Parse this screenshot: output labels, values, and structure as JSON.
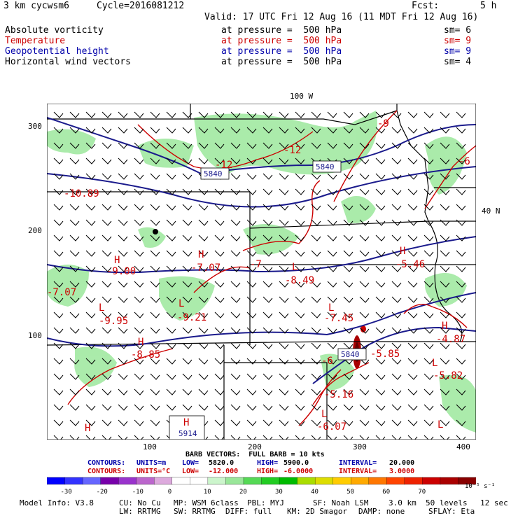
{
  "header": {
    "model": "3 km cycwsm6",
    "cycle": "Cycle=2016081212",
    "fcst_label": "Fcst:",
    "fcst_value": "5 h",
    "valid": "Valid: 17 UTC Fri 12 Aug 16 (11 MDT Fri 12 Aug 16)",
    "fields": [
      {
        "name": "Absolute vorticity",
        "at": "at pressure =  500 hPa",
        "sm": "sm= 6",
        "color": "#000000"
      },
      {
        "name": "Temperature",
        "at": "at pressure =  500 hPa",
        "sm": "sm= 9",
        "color": "#cc0000"
      },
      {
        "name": "Geopotential height",
        "at": "at pressure =  500 hPa",
        "sm": "sm= 9",
        "color": "#0000aa"
      },
      {
        "name": "Horizontal wind vectors",
        "at": "at pressure =  500 hPa",
        "sm": "sm= 4",
        "color": "#000000"
      }
    ]
  },
  "map": {
    "top_label": "100 W",
    "right_label": "40 N",
    "y_ticks": [
      "300",
      "200",
      "100"
    ],
    "x_ticks": [
      "100",
      "200",
      "300",
      "400"
    ],
    "height_labels": [
      "5840",
      "5840",
      "5840",
      "5914"
    ],
    "temp_labels": [
      "-12",
      "-12",
      "-9",
      "-6",
      "-10.89",
      "-9.00",
      "-7.07",
      "-7",
      "-8.49",
      "-5.46",
      "-7.07",
      "-9.95",
      "-9.21",
      "-7.45",
      "-4.87",
      "-8.85",
      "-5.85",
      "-5.82",
      "-6",
      "-5.16",
      "-6.07"
    ],
    "pressure_centers": [
      "H",
      "H",
      "H",
      "L",
      "L",
      "L",
      "H",
      "L",
      "H",
      "L",
      "L",
      "L",
      "H",
      "H"
    ],
    "colors": {
      "vorticity": "#9ce89c",
      "height": "#1a1a8c",
      "temp": "#cc0000",
      "border": "#000000",
      "wind": "#000000"
    }
  },
  "legend": {
    "barb_vectors": "BARB VECTORS:  FULL BARB = 10 kts",
    "contours_height": {
      "label": "CONTOURS:",
      "units": "UNITS=m",
      "low": "LOW=",
      "low_v": "5820.0",
      "high": "HIGH=",
      "high_v": "5900.0",
      "interval": "INTERVAL=",
      "interval_v": "20.000"
    },
    "contours_temp": {
      "label": "CONTOURS:",
      "units": "UNITS=°C",
      "low": "LOW=",
      "low_v": "-12.000",
      "high": "HIGH=",
      "high_v": "-6.0000",
      "interval": "INTERVAL=",
      "interval_v": "3.0000"
    },
    "colorbar_ticks": [
      "-30",
      "-20",
      "-10",
      "0",
      "10",
      "20",
      "30",
      "40",
      "50",
      "60",
      "70"
    ],
    "colorbar_unit": "10⁻⁵ s⁻¹",
    "colorbar_colors": [
      "#0000ff",
      "#3333ff",
      "#6666ff",
      "#7700aa",
      "#9933cc",
      "#bb66cc",
      "#ddaadd",
      "#ffffff",
      "#ffffff",
      "#ccf5cc",
      "#99e699",
      "#55d955",
      "#22cc22",
      "#00bb00",
      "#aadd00",
      "#dddd00",
      "#ffcc00",
      "#ffaa00",
      "#ff7700",
      "#ff4400",
      "#ee2200",
      "#cc0000",
      "#aa0000",
      "#880000"
    ]
  },
  "footer": {
    "line1": [
      "Model Info: V3.8",
      "CU: No Cu",
      "MP: WSM 6class",
      "PBL: MYJ",
      "SF: Noah LSM",
      "3.0 km",
      "50 levels",
      "12 sec"
    ],
    "line2": [
      "LW: RRTMG",
      "SW: RRTMG",
      "DIFF: full",
      "KM: 2D Smagor",
      "DAMP: none",
      "SFLAY: Eta"
    ]
  }
}
